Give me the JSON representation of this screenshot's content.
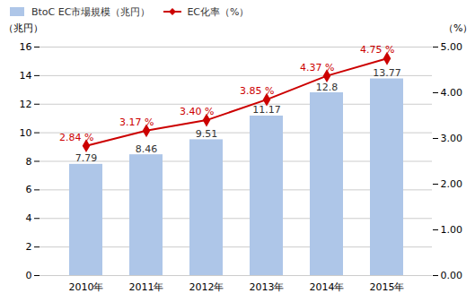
{
  "chart_data": {
    "type": "bar",
    "categories": [
      "2010年",
      "2011年",
      "2012年",
      "2013年",
      "2014年",
      "2015年"
    ],
    "series": [
      {
        "name": "BtoC EC市場規模（兆円）",
        "type": "bar",
        "color": "#aec6e8",
        "values": [
          7.79,
          8.46,
          9.51,
          11.17,
          12.8,
          13.77
        ]
      },
      {
        "name": "EC化率（%）",
        "type": "line",
        "axis": "y2",
        "color": "#cc0000",
        "marker": "diamond",
        "values": [
          2.84,
          3.17,
          3.4,
          3.85,
          4.37,
          4.75
        ],
        "value_labels": [
          "2.84 %",
          "3.17 %",
          "3.40 %",
          "3.85 %",
          "4.37 %",
          "4.75 %"
        ]
      }
    ],
    "ylabel": "（兆円）",
    "y2label": "（%）",
    "ylim": [
      0,
      16
    ],
    "yticks": [
      0,
      2,
      4,
      6,
      8,
      10,
      12,
      14,
      16
    ],
    "y2lim": [
      0,
      5
    ],
    "y2ticks": [
      {
        "value": 0,
        "label": "0.00"
      },
      {
        "value": 1,
        "label": "1.00"
      },
      {
        "value": 2,
        "label": "2.00"
      },
      {
        "value": 3,
        "label": "3.00"
      },
      {
        "value": 4,
        "label": "4.00"
      },
      {
        "value": 5,
        "label": "5.00"
      }
    ],
    "grid": true,
    "legend": "upper left",
    "data_labels": true
  }
}
